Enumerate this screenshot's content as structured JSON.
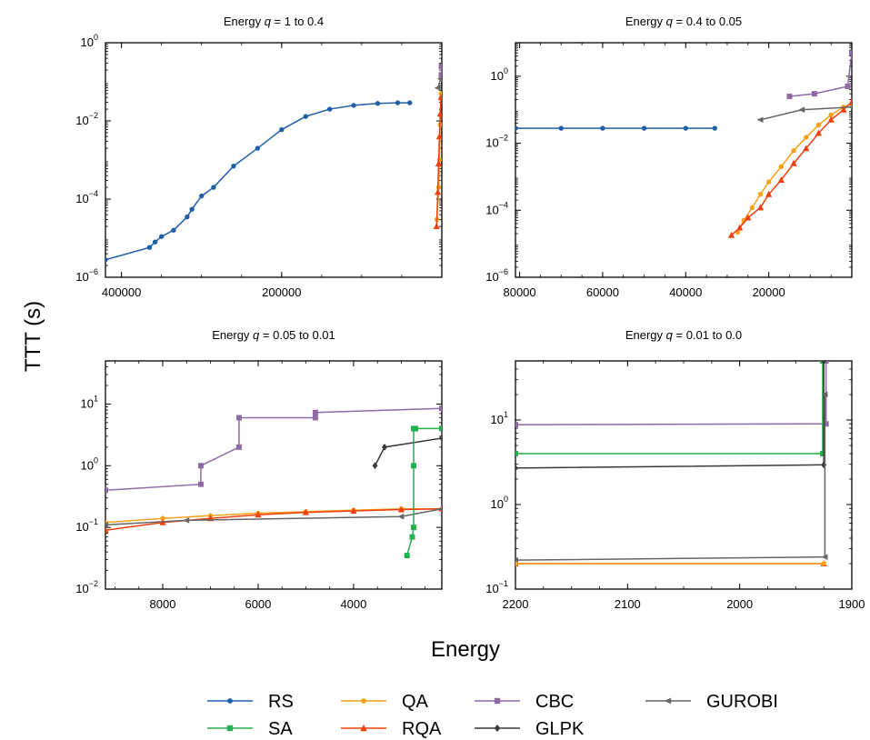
{
  "ylabel": "TTT (s)",
  "xlabel": "Energy",
  "colors": {
    "RS": "#1f5fa8",
    "SA": "#22b14c",
    "QA": "#f5a11a",
    "RQA": "#f0400f",
    "CBC": "#8e6aa6",
    "GLPK": "#3a3a3a",
    "GUROBI": "#666666"
  },
  "legend": {
    "placement": "bottom",
    "items": [
      {
        "name": "RS",
        "marker": "circle"
      },
      {
        "name": "SA",
        "marker": "square"
      },
      {
        "name": "QA",
        "marker": "circle"
      },
      {
        "name": "RQA",
        "marker": "triangle"
      },
      {
        "name": "CBC",
        "marker": "square"
      },
      {
        "name": "GLPK",
        "marker": "diamond"
      },
      {
        "name": "GUROBI",
        "marker": "triangle-left"
      }
    ]
  },
  "chart_data": [
    {
      "type": "line",
      "title": "Energy q = 1 to 0.4",
      "title_prefix": "Energy ",
      "title_q": "q",
      "title_suffix": " = 1 to 0.4",
      "yscale": "log",
      "xreversed": true,
      "xlim": [
        420000,
        0
      ],
      "ylim": [
        1e-06,
        1
      ],
      "xticks": [
        400000,
        200000
      ],
      "xticklabels": [
        "400000",
        "200000"
      ],
      "yticks": [
        -6,
        -4,
        -2,
        0
      ],
      "series": [
        {
          "name": "RS",
          "x": [
            420000,
            365000,
            358000,
            350000,
            335000,
            318000,
            312000,
            300000,
            285000,
            260000,
            230000,
            200000,
            170000,
            140000,
            110000,
            80000,
            55000,
            40000
          ],
          "y": [
            2.8e-06,
            5.8e-06,
            8e-06,
            1.1e-05,
            1.6e-05,
            3.5e-05,
            5.5e-05,
            0.00012,
            0.0002,
            0.0007,
            0.002,
            0.006,
            0.013,
            0.02,
            0.025,
            0.028,
            0.029,
            0.029
          ]
        },
        {
          "name": "QA",
          "x": [
            6000,
            4000,
            3000,
            2000,
            1000
          ],
          "y": [
            3e-05,
            0.0002,
            0.001,
            0.008,
            0.05
          ]
        },
        {
          "name": "RQA",
          "x": [
            6500,
            5000,
            4000,
            3000,
            2000,
            1000
          ],
          "y": [
            2e-05,
            0.00015,
            0.0008,
            0.004,
            0.015,
            0.04
          ]
        },
        {
          "name": "GUROBI",
          "x": [
            5000,
            1500
          ],
          "y": [
            0.07,
            0.12
          ]
        },
        {
          "name": "CBC",
          "x": [
            500,
            500
          ],
          "y": [
            0.15,
            0.25
          ]
        }
      ]
    },
    {
      "type": "line",
      "title": "Energy q = 0.4 to 0.05",
      "title_prefix": "Energy ",
      "title_q": "q",
      "title_suffix": " = 0.4 to 0.05",
      "yscale": "log",
      "xreversed": true,
      "xlim": [
        81000,
        0
      ],
      "ylim": [
        1e-06,
        10
      ],
      "xticks": [
        80000,
        60000,
        40000,
        20000
      ],
      "xticklabels": [
        "80000",
        "60000",
        "40000",
        "20000"
      ],
      "yticks": [
        -6,
        -4,
        -2,
        0
      ],
      "series": [
        {
          "name": "RS",
          "x": [
            81000,
            70000,
            60000,
            50000,
            40000,
            33000
          ],
          "y": [
            0.028,
            0.028,
            0.028,
            0.028,
            0.028,
            0.028
          ]
        },
        {
          "name": "QA",
          "x": [
            27500,
            26000,
            24000,
            22000,
            20000,
            17000,
            14000,
            11000,
            8000,
            5000,
            2000,
            0
          ],
          "y": [
            2.2e-05,
            5e-05,
            0.00012,
            0.0003,
            0.0007,
            0.002,
            0.006,
            0.015,
            0.035,
            0.07,
            0.12,
            0.15
          ]
        },
        {
          "name": "RQA",
          "x": [
            29000,
            27000,
            25000,
            22000,
            20000,
            17000,
            14000,
            11000,
            8000,
            5000,
            2000,
            0
          ],
          "y": [
            1.8e-05,
            3e-05,
            6e-05,
            0.00012,
            0.0003,
            0.0008,
            0.0025,
            0.007,
            0.02,
            0.05,
            0.1,
            0.17
          ]
        },
        {
          "name": "GUROBI",
          "x": [
            22000,
            12000,
            0
          ],
          "y": [
            0.05,
            0.1,
            0.12
          ]
        },
        {
          "name": "CBC",
          "x": [
            15000,
            9000,
            1000,
            0
          ],
          "y": [
            0.25,
            0.3,
            0.5,
            5
          ]
        }
      ]
    },
    {
      "type": "line",
      "title": "Energy q = 0.05 to 0.01",
      "title_prefix": "Energy ",
      "title_q": "q",
      "title_suffix": " = 0.05 to 0.01",
      "yscale": "log",
      "xreversed": true,
      "xlim": [
        9200,
        2150
      ],
      "ylim": [
        0.01,
        50
      ],
      "xticks": [
        8000,
        6000,
        4000
      ],
      "xticklabels": [
        "8000",
        "6000",
        "4000"
      ],
      "yticks": [
        -2,
        -1,
        0,
        1
      ],
      "series": [
        {
          "name": "CBC",
          "x": [
            9200,
            7200,
            7200,
            6400,
            6400,
            4800,
            4800,
            2150
          ],
          "y": [
            0.4,
            0.5,
            1,
            2,
            6,
            6,
            7.3,
            8.5
          ]
        },
        {
          "name": "QA",
          "x": [
            9200,
            8000,
            7000,
            6000,
            5000,
            4000,
            3000,
            2150
          ],
          "y": [
            0.12,
            0.14,
            0.155,
            0.17,
            0.18,
            0.19,
            0.2,
            0.2
          ]
        },
        {
          "name": "RQA",
          "x": [
            9200,
            8000,
            7000,
            6000,
            5000,
            4000,
            3000,
            2150
          ],
          "y": [
            0.09,
            0.12,
            0.14,
            0.16,
            0.175,
            0.185,
            0.195,
            0.2
          ]
        },
        {
          "name": "GUROBI",
          "x": [
            9200,
            7500,
            3000,
            2150
          ],
          "y": [
            0.11,
            0.13,
            0.15,
            0.2
          ]
        },
        {
          "name": "GLPK",
          "x": [
            3550,
            3350,
            2150
          ],
          "y": [
            1,
            2,
            2.8
          ]
        },
        {
          "name": "SA",
          "x": [
            2880,
            2770,
            2740,
            2740,
            2740,
            2700,
            2150
          ],
          "y": [
            0.035,
            0.07,
            0.1,
            1,
            4,
            4,
            4
          ]
        }
      ]
    },
    {
      "type": "line",
      "title": "Energy q = 0.01 to 0.0",
      "title_prefix": "Energy ",
      "title_q": "q",
      "title_suffix": " = 0.01 to 0.0",
      "yscale": "log",
      "xreversed": true,
      "xlim": [
        2200,
        1900
      ],
      "ylim": [
        0.1,
        50
      ],
      "xticks": [
        2200,
        2100,
        2000,
        1900
      ],
      "xticklabels": [
        "2200",
        "2100",
        "2000",
        "1900"
      ],
      "yticks": [
        -1,
        0,
        1
      ],
      "series": [
        {
          "name": "CBC",
          "x": [
            2200,
            1923,
            1923
          ],
          "y": [
            8.8,
            9,
            50
          ]
        },
        {
          "name": "SA",
          "x": [
            2200,
            1926,
            1926
          ],
          "y": [
            4,
            4,
            50
          ]
        },
        {
          "name": "GLPK",
          "x": [
            2200,
            1925,
            1925
          ],
          "y": [
            2.7,
            2.95,
            50
          ]
        },
        {
          "name": "GUROBI",
          "x": [
            2200,
            1924,
            1924
          ],
          "y": [
            0.22,
            0.24,
            20
          ]
        },
        {
          "name": "RQA",
          "x": [
            2200,
            1925
          ],
          "y": [
            0.2,
            0.2
          ]
        },
        {
          "name": "QA",
          "x": [
            2200,
            1925
          ],
          "y": [
            0.2,
            0.2
          ]
        }
      ]
    }
  ]
}
